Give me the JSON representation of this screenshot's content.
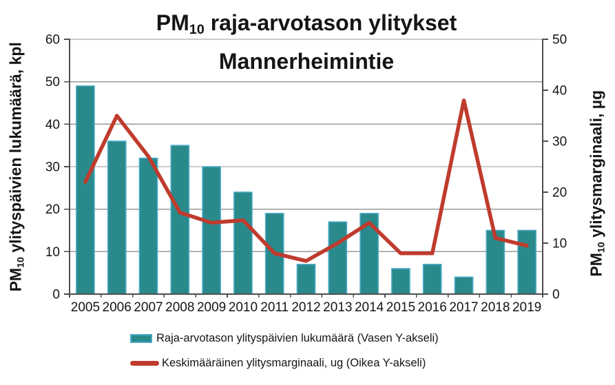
{
  "title": {
    "pm_prefix": "PM",
    "pm_sub": "10",
    "line1_rest": " raja-arvotason ylitykset",
    "line2": "Mannerheimintie"
  },
  "left_axis_title": {
    "pm_prefix": "PM",
    "pm_sub": "10",
    "rest": " ylityspäivien lukumäärä, kpl"
  },
  "right_axis_title": {
    "pm_prefix": "PM",
    "pm_sub": "10",
    "rest": " ylitysmarginaali, µg"
  },
  "legend": {
    "bar_label": "Raja-arvotason ylityspäivien lukumäärä (Vasen Y-akseli)",
    "line_label": "Keskimääräinen ylitysmarginaali, ug (Oikea Y-akseli)"
  },
  "colors": {
    "bar_fill": "#2A8A8B",
    "bar_border": "#4BACC6",
    "line": "#BF3B2D",
    "gridline": "#9A9A9A",
    "axis": "#4D4D4D",
    "tick_text": "#151515",
    "background": "#FFFFFF"
  },
  "chart_data": {
    "type": "bar+line combo",
    "categories": [
      "2005",
      "2006",
      "2007",
      "2008",
      "2009",
      "2010",
      "2011",
      "2012",
      "2013",
      "2014",
      "2015",
      "2016",
      "2017",
      "2018",
      "2019"
    ],
    "series": [
      {
        "name": "Raja-arvotason ylityspäivien lukumäärä (Vasen Y-akseli)",
        "type": "bar",
        "axis": "left",
        "values": [
          49,
          36,
          32,
          35,
          30,
          24,
          19,
          7,
          17,
          19,
          6,
          7,
          4,
          15,
          15
        ]
      },
      {
        "name": "Keskimääräinen ylitysmarginaali, ug (Oikea Y-akseli)",
        "type": "line",
        "axis": "right",
        "values": [
          22,
          35,
          27,
          16,
          14,
          14.5,
          8,
          6.5,
          10,
          14,
          8,
          8,
          38,
          11,
          9.5
        ]
      }
    ],
    "title": "PM10 raja-arvotason ylitykset Mannerheimintie",
    "left_ylabel": "PM10 ylityspäivien lukumäärä, kpl",
    "right_ylabel": "PM10 ylitysmarginaali, µg",
    "left_ylim": [
      0,
      60
    ],
    "left_tick_step": 10,
    "right_ylim": [
      0,
      50
    ],
    "right_tick_step": 10,
    "grid": "horizontal gridlines at left-axis ticks",
    "legend_position": "bottom"
  }
}
